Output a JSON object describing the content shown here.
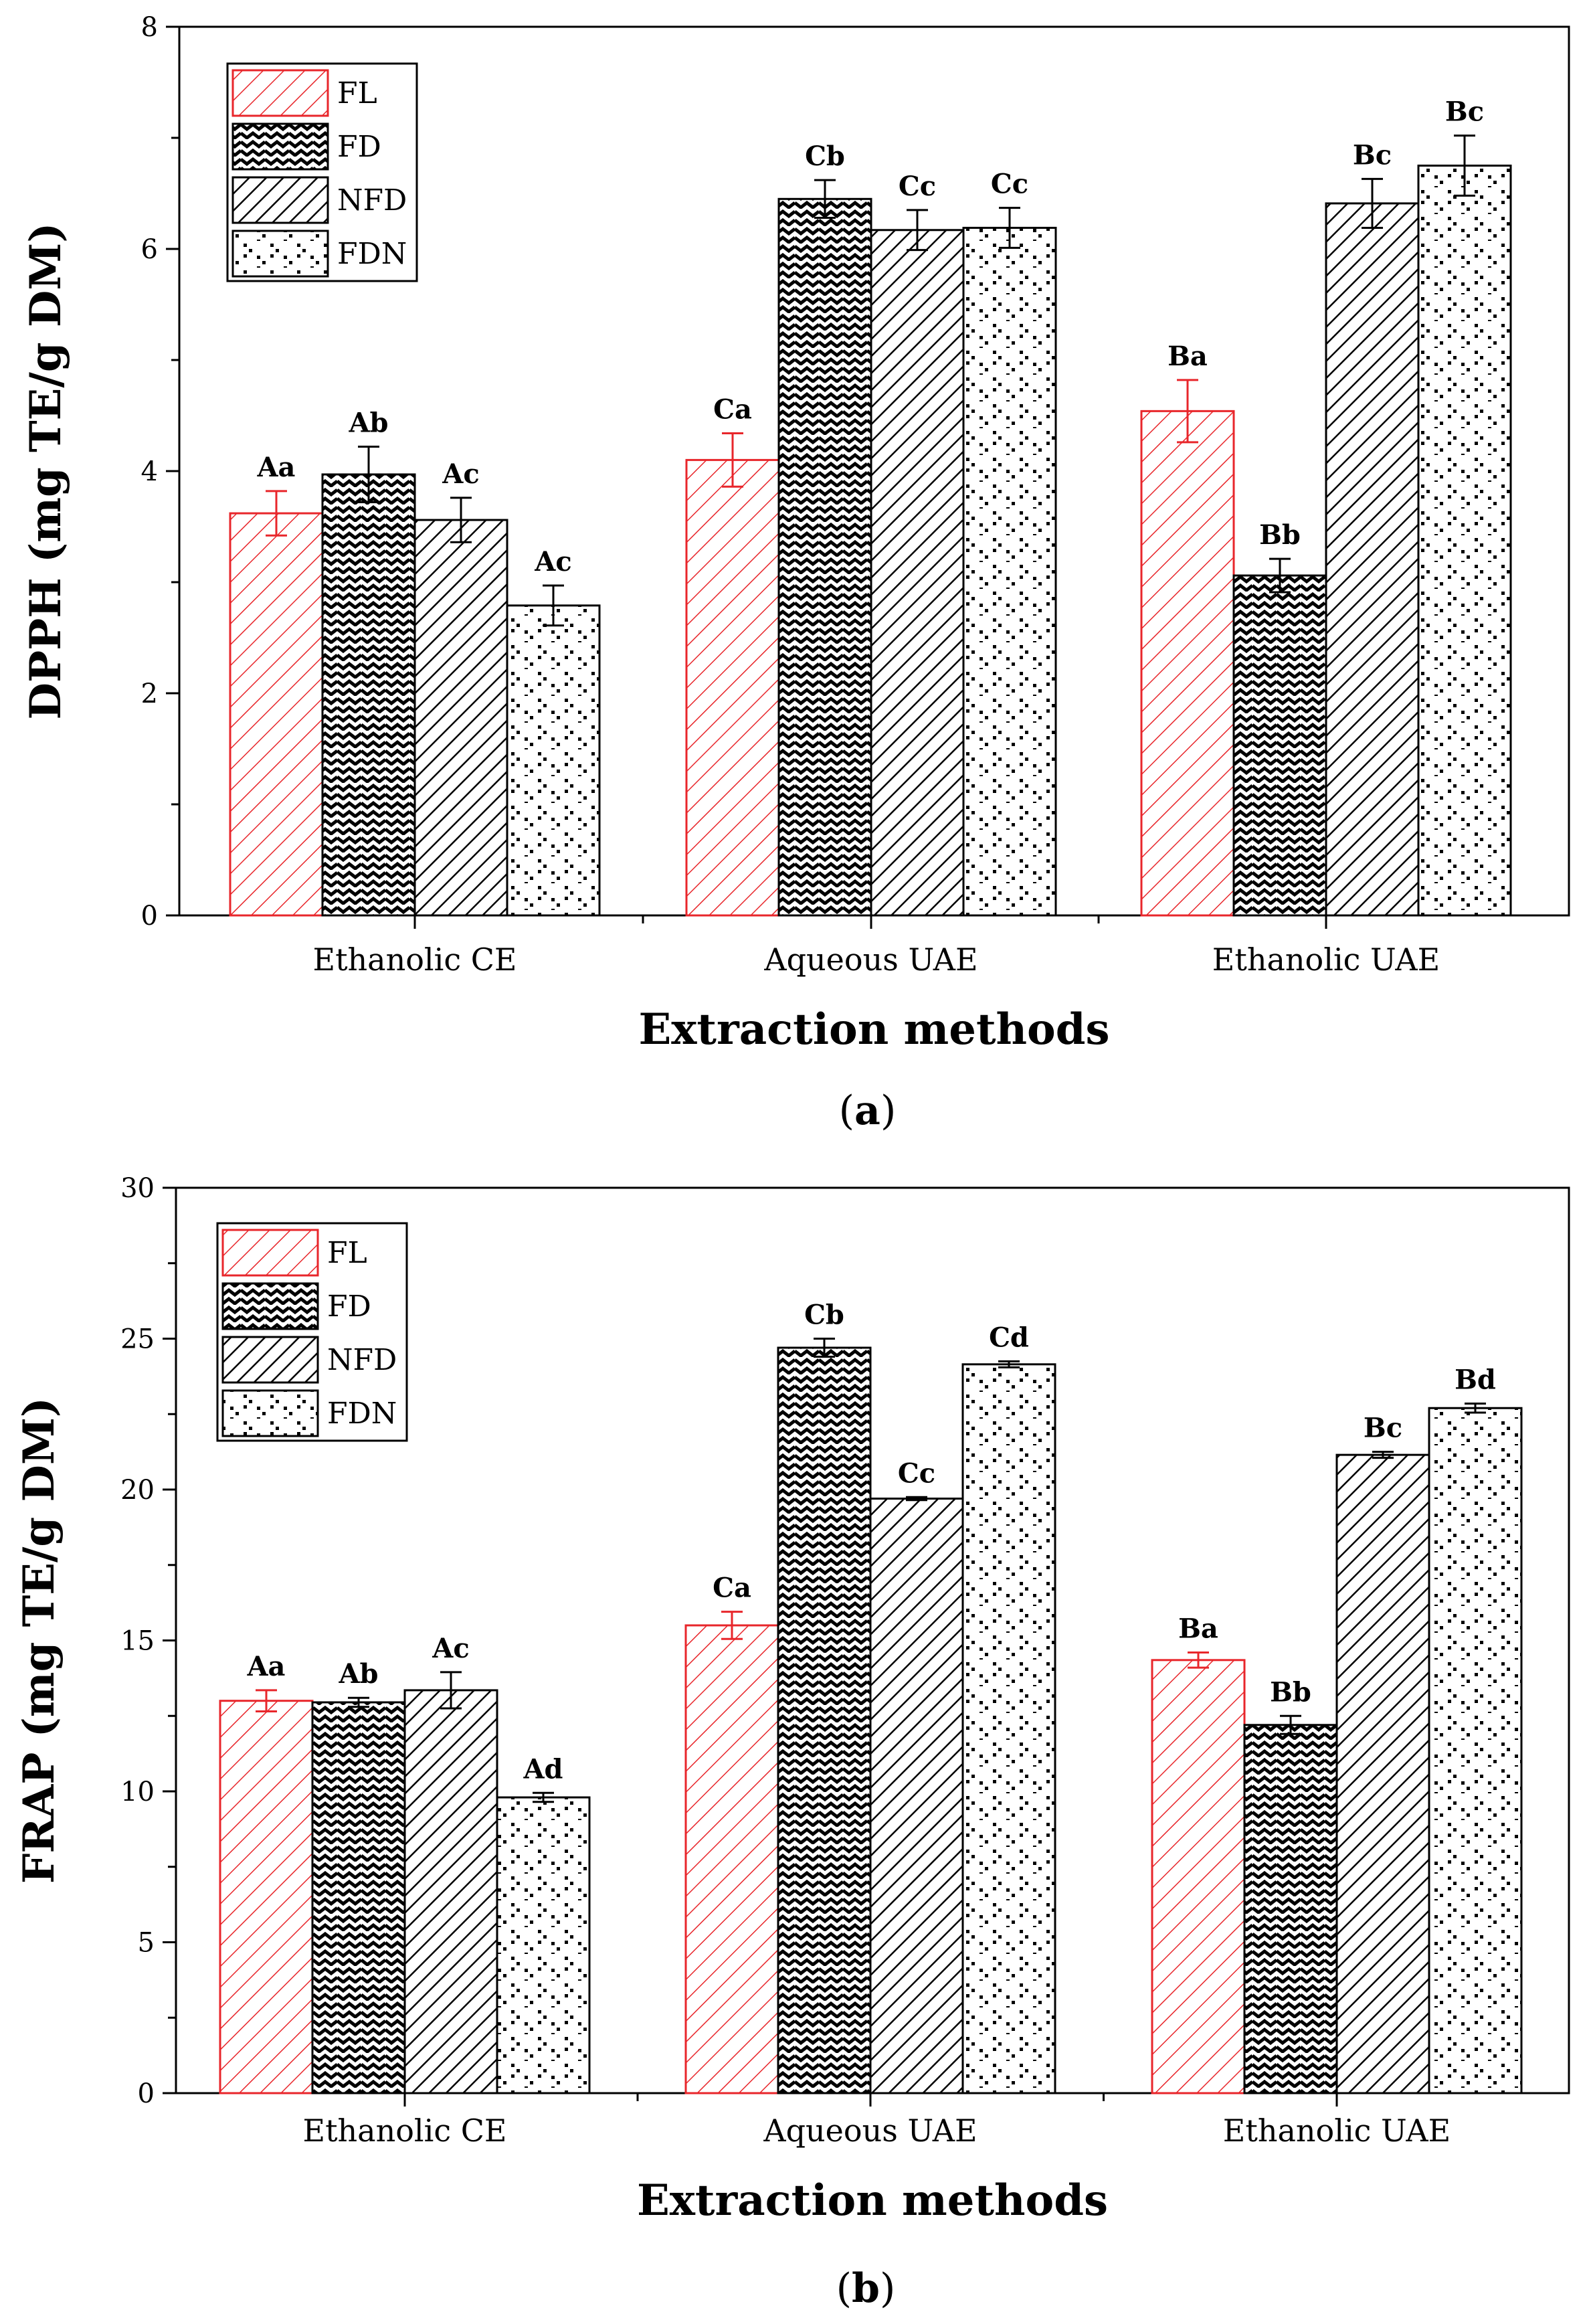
{
  "colors": {
    "fl": "#e8262b",
    "ink": "#000000",
    "bg": "#ffffff"
  },
  "chart_data": [
    {
      "type": "bar",
      "panel_label": "a",
      "title": "",
      "xlabel": "Extraction methods",
      "ylabel": "DPPH (mg TE/g DM)",
      "ylim": [
        0,
        8
      ],
      "yticks": [
        "0",
        "2",
        "4",
        "6",
        "8"
      ],
      "categories": [
        "Ethanolic CE",
        "Aqueous UAE",
        "Ethanolic UAE"
      ],
      "legend_position": "top-left",
      "series": [
        {
          "name": "FL",
          "pattern": "hatch-red",
          "values": [
            3.62,
            4.1,
            4.54
          ],
          "errors": [
            0.2,
            0.24,
            0.28
          ],
          "labels": [
            "Aa",
            "Ca",
            "Ba"
          ]
        },
        {
          "name": "FD",
          "pattern": "zigzag",
          "values": [
            3.97,
            6.45,
            3.06
          ],
          "errors": [
            0.25,
            0.17,
            0.15
          ],
          "labels": [
            "Ab",
            "Cb",
            "Bb"
          ]
        },
        {
          "name": "NFD",
          "pattern": "hatch",
          "values": [
            3.56,
            6.17,
            6.41
          ],
          "errors": [
            0.2,
            0.18,
            0.22
          ],
          "labels": [
            "Ac",
            "Cc",
            "Bc"
          ]
        },
        {
          "name": "FDN",
          "pattern": "dots",
          "values": [
            2.79,
            6.19,
            6.75
          ],
          "errors": [
            0.18,
            0.18,
            0.27
          ],
          "labels": [
            "Ac",
            "Cc",
            "Bc"
          ]
        }
      ]
    },
    {
      "type": "bar",
      "panel_label": "b",
      "title": "",
      "xlabel": "Extraction methods",
      "ylabel": "FRAP (mg TE/g DM)",
      "ylim": [
        0,
        30
      ],
      "yticks": [
        "0",
        "5",
        "10",
        "15",
        "20",
        "25",
        "30"
      ],
      "categories": [
        "Ethanolic CE",
        "Aqueous UAE",
        "Ethanolic UAE"
      ],
      "legend_position": "top-left",
      "series": [
        {
          "name": "FL",
          "pattern": "hatch-red",
          "values": [
            13.0,
            15.5,
            14.35
          ],
          "errors": [
            0.35,
            0.45,
            0.25
          ],
          "labels": [
            "Aa",
            "Ca",
            "Ba"
          ]
        },
        {
          "name": "FD",
          "pattern": "zigzag",
          "values": [
            12.95,
            24.7,
            12.2
          ],
          "errors": [
            0.15,
            0.3,
            0.3
          ],
          "labels": [
            "Ab",
            "Cb",
            "Bb"
          ]
        },
        {
          "name": "NFD",
          "pattern": "hatch",
          "values": [
            13.35,
            19.7,
            21.15
          ],
          "errors": [
            0.6,
            0.05,
            0.1
          ],
          "labels": [
            "Ac",
            "Cc",
            "Bc"
          ]
        },
        {
          "name": "FDN",
          "pattern": "dots",
          "values": [
            9.8,
            24.15,
            22.7
          ],
          "errors": [
            0.15,
            0.1,
            0.15
          ],
          "labels": [
            "Ad",
            "Cd",
            "Bd"
          ]
        }
      ]
    }
  ]
}
